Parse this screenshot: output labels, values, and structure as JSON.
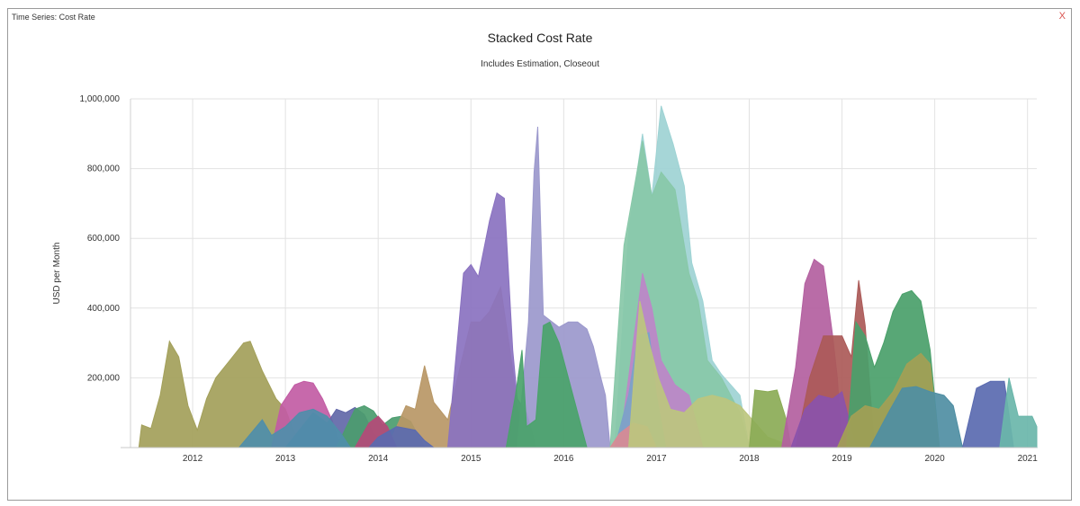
{
  "window": {
    "title": "Time Series: Cost Rate",
    "close_label": "X"
  },
  "chart_data": {
    "type": "area",
    "title": "Stacked Cost Rate",
    "subtitle": "Includes Estimation, Closeout",
    "ylabel": "USD per Month",
    "xlabel": "",
    "ylim": [
      0,
      1000000
    ],
    "yticks": [
      200000,
      400000,
      600000,
      800000,
      1000000
    ],
    "ytick_labels": [
      "200,000",
      "400,000",
      "600,000",
      "800,000",
      "1,000,000"
    ],
    "xlim": [
      2011.33,
      2021.1
    ],
    "xticks": [
      2012,
      2013,
      2014,
      2015,
      2016,
      2017,
      2018,
      2019,
      2020,
      2021
    ],
    "xtick_labels": [
      "2012",
      "2013",
      "2014",
      "2015",
      "2016",
      "2017",
      "2018",
      "2019",
      "2020",
      "2021"
    ],
    "grid": true,
    "legend": "none",
    "series": [
      {
        "color": "#a3a05a",
        "points": [
          [
            2011.42,
            0
          ],
          [
            2011.45,
            65000
          ],
          [
            2011.55,
            55000
          ],
          [
            2011.65,
            150000
          ],
          [
            2011.75,
            305000
          ],
          [
            2011.85,
            260000
          ],
          [
            2011.95,
            120000
          ],
          [
            2012.05,
            50000
          ],
          [
            2012.15,
            140000
          ],
          [
            2012.25,
            200000
          ],
          [
            2012.4,
            250000
          ],
          [
            2012.55,
            300000
          ],
          [
            2012.62,
            305000
          ],
          [
            2012.75,
            220000
          ],
          [
            2012.9,
            140000
          ],
          [
            2013.0,
            110000
          ],
          [
            2013.1,
            40000
          ],
          [
            2013.2,
            0
          ]
        ]
      },
      {
        "color": "#c25ca4",
        "points": [
          [
            2012.85,
            0
          ],
          [
            2012.95,
            120000
          ],
          [
            2013.1,
            180000
          ],
          [
            2013.2,
            190000
          ],
          [
            2013.3,
            185000
          ],
          [
            2013.4,
            140000
          ],
          [
            2013.5,
            80000
          ],
          [
            2013.6,
            0
          ]
        ]
      },
      {
        "color": "#6268a8",
        "points": [
          [
            2013.0,
            0
          ],
          [
            2013.3,
            100000
          ],
          [
            2013.45,
            70000
          ],
          [
            2013.55,
            110000
          ],
          [
            2013.65,
            100000
          ],
          [
            2013.75,
            115000
          ],
          [
            2013.85,
            95000
          ],
          [
            2013.95,
            40000
          ],
          [
            2014.1,
            0
          ]
        ]
      },
      {
        "color": "#4b9c6e",
        "points": [
          [
            2013.55,
            0
          ],
          [
            2013.75,
            110000
          ],
          [
            2013.85,
            120000
          ],
          [
            2013.95,
            105000
          ],
          [
            2014.05,
            65000
          ],
          [
            2014.15,
            85000
          ],
          [
            2014.25,
            90000
          ],
          [
            2014.35,
            75000
          ],
          [
            2014.5,
            0
          ]
        ]
      },
      {
        "color": "#b89766",
        "points": [
          [
            2014.1,
            0
          ],
          [
            2014.3,
            120000
          ],
          [
            2014.4,
            110000
          ],
          [
            2014.5,
            235000
          ],
          [
            2014.6,
            130000
          ],
          [
            2014.75,
            80000
          ],
          [
            2014.9,
            250000
          ],
          [
            2015.0,
            360000
          ],
          [
            2015.1,
            360000
          ],
          [
            2015.2,
            390000
          ],
          [
            2015.32,
            460000
          ],
          [
            2015.42,
            280000
          ],
          [
            2015.5,
            120000
          ],
          [
            2015.6,
            0
          ]
        ]
      },
      {
        "color": "#8a72c0",
        "points": [
          [
            2014.75,
            0
          ],
          [
            2014.92,
            500000
          ],
          [
            2015.0,
            525000
          ],
          [
            2015.08,
            490000
          ],
          [
            2015.2,
            650000
          ],
          [
            2015.28,
            730000
          ],
          [
            2015.36,
            715000
          ],
          [
            2015.45,
            280000
          ],
          [
            2015.5,
            140000
          ],
          [
            2015.6,
            100000
          ],
          [
            2015.7,
            0
          ]
        ]
      },
      {
        "color": "#9b98cc",
        "points": [
          [
            2015.5,
            0
          ],
          [
            2015.62,
            360000
          ],
          [
            2015.68,
            790000
          ],
          [
            2015.72,
            920000
          ],
          [
            2015.78,
            380000
          ],
          [
            2015.95,
            345000
          ],
          [
            2016.05,
            360000
          ],
          [
            2016.15,
            360000
          ],
          [
            2016.25,
            340000
          ],
          [
            2016.32,
            290000
          ],
          [
            2016.4,
            200000
          ],
          [
            2016.45,
            150000
          ],
          [
            2016.5,
            0
          ]
        ]
      },
      {
        "color": "#4aa36a",
        "points": [
          [
            2015.38,
            0
          ],
          [
            2015.48,
            150000
          ],
          [
            2015.55,
            280000
          ],
          [
            2015.6,
            60000
          ],
          [
            2015.7,
            80000
          ],
          [
            2015.78,
            350000
          ],
          [
            2015.85,
            360000
          ],
          [
            2015.95,
            300000
          ],
          [
            2016.05,
            200000
          ],
          [
            2016.15,
            100000
          ],
          [
            2016.25,
            0
          ]
        ]
      },
      {
        "color": "#9ed3d4",
        "points": [
          [
            2016.55,
            0
          ],
          [
            2016.7,
            620000
          ],
          [
            2016.85,
            900000
          ],
          [
            2016.95,
            720000
          ],
          [
            2017.05,
            980000
          ],
          [
            2017.18,
            870000
          ],
          [
            2017.3,
            750000
          ],
          [
            2017.38,
            530000
          ],
          [
            2017.5,
            420000
          ],
          [
            2017.6,
            250000
          ],
          [
            2017.7,
            210000
          ],
          [
            2017.9,
            150000
          ],
          [
            2018.0,
            0
          ]
        ]
      },
      {
        "color": "#88c8a8",
        "points": [
          [
            2016.5,
            0
          ],
          [
            2016.65,
            580000
          ],
          [
            2016.85,
            880000
          ],
          [
            2016.95,
            720000
          ],
          [
            2017.05,
            790000
          ],
          [
            2017.2,
            740000
          ],
          [
            2017.35,
            500000
          ],
          [
            2017.45,
            420000
          ],
          [
            2017.55,
            250000
          ],
          [
            2017.7,
            200000
          ],
          [
            2017.9,
            100000
          ],
          [
            2018.0,
            0
          ]
        ]
      },
      {
        "color": "#bd86c8",
        "points": [
          [
            2016.6,
            0
          ],
          [
            2016.75,
            300000
          ],
          [
            2016.85,
            500000
          ],
          [
            2016.95,
            400000
          ],
          [
            2017.05,
            250000
          ],
          [
            2017.2,
            180000
          ],
          [
            2017.35,
            150000
          ],
          [
            2017.5,
            0
          ]
        ]
      },
      {
        "color": "#7ba3c8",
        "points": [
          [
            2016.55,
            0
          ],
          [
            2016.7,
            150000
          ],
          [
            2016.8,
            320000
          ],
          [
            2016.92,
            330000
          ],
          [
            2017.0,
            150000
          ],
          [
            2017.1,
            0
          ]
        ]
      },
      {
        "color": "#d88a94",
        "points": [
          [
            2016.5,
            0
          ],
          [
            2016.6,
            40000
          ],
          [
            2016.75,
            70000
          ],
          [
            2016.9,
            60000
          ],
          [
            2017.0,
            0
          ]
        ]
      },
      {
        "color": "#bcc57e",
        "points": [
          [
            2016.7,
            0
          ],
          [
            2016.82,
            420000
          ],
          [
            2016.92,
            300000
          ],
          [
            2017.02,
            200000
          ],
          [
            2017.15,
            110000
          ],
          [
            2017.3,
            100000
          ],
          [
            2017.45,
            140000
          ],
          [
            2017.6,
            150000
          ],
          [
            2017.75,
            140000
          ],
          [
            2017.9,
            120000
          ],
          [
            2018.0,
            90000
          ],
          [
            2018.1,
            60000
          ],
          [
            2018.2,
            30000
          ],
          [
            2018.35,
            15000
          ],
          [
            2018.5,
            0
          ]
        ]
      },
      {
        "color": "#8bab56",
        "points": [
          [
            2018.0,
            0
          ],
          [
            2018.06,
            165000
          ],
          [
            2018.2,
            160000
          ],
          [
            2018.3,
            165000
          ],
          [
            2018.4,
            80000
          ],
          [
            2018.45,
            0
          ]
        ]
      },
      {
        "color": "#b360a0",
        "points": [
          [
            2018.35,
            0
          ],
          [
            2018.5,
            230000
          ],
          [
            2018.6,
            470000
          ],
          [
            2018.7,
            540000
          ],
          [
            2018.8,
            520000
          ],
          [
            2018.9,
            320000
          ],
          [
            2018.95,
            200000
          ],
          [
            2019.0,
            0
          ]
        ]
      },
      {
        "color": "#ab5a58",
        "points": [
          [
            2018.5,
            0
          ],
          [
            2018.65,
            200000
          ],
          [
            2018.8,
            320000
          ],
          [
            2019.0,
            320000
          ],
          [
            2019.1,
            260000
          ],
          [
            2019.18,
            480000
          ],
          [
            2019.25,
            350000
          ],
          [
            2019.35,
            0
          ]
        ]
      },
      {
        "color": "#8a52ab",
        "points": [
          [
            2018.45,
            0
          ],
          [
            2018.6,
            110000
          ],
          [
            2018.75,
            150000
          ],
          [
            2018.9,
            140000
          ],
          [
            2019.0,
            160000
          ],
          [
            2019.15,
            0
          ]
        ]
      },
      {
        "color": "#4aa06a",
        "points": [
          [
            2019.05,
            0
          ],
          [
            2019.15,
            360000
          ],
          [
            2019.25,
            320000
          ],
          [
            2019.35,
            230000
          ],
          [
            2019.45,
            300000
          ],
          [
            2019.55,
            390000
          ],
          [
            2019.65,
            440000
          ],
          [
            2019.75,
            450000
          ],
          [
            2019.85,
            420000
          ],
          [
            2019.95,
            280000
          ],
          [
            2020.05,
            0
          ]
        ]
      },
      {
        "color": "#a3a055",
        "points": [
          [
            2018.95,
            0
          ],
          [
            2019.1,
            90000
          ],
          [
            2019.25,
            120000
          ],
          [
            2019.4,
            110000
          ],
          [
            2019.55,
            160000
          ],
          [
            2019.7,
            240000
          ],
          [
            2019.85,
            270000
          ],
          [
            2019.95,
            240000
          ],
          [
            2020.05,
            0
          ]
        ]
      },
      {
        "color": "#4f8ea3",
        "points": [
          [
            2019.3,
            0
          ],
          [
            2019.5,
            100000
          ],
          [
            2019.65,
            170000
          ],
          [
            2019.8,
            175000
          ],
          [
            2019.95,
            160000
          ],
          [
            2020.1,
            150000
          ],
          [
            2020.2,
            120000
          ],
          [
            2020.3,
            0
          ]
        ]
      },
      {
        "color": "#5a6ab0",
        "points": [
          [
            2020.3,
            0
          ],
          [
            2020.45,
            170000
          ],
          [
            2020.6,
            190000
          ],
          [
            2020.75,
            190000
          ],
          [
            2020.85,
            0
          ]
        ]
      },
      {
        "color": "#6ab6aa",
        "points": [
          [
            2020.7,
            0
          ],
          [
            2020.8,
            200000
          ],
          [
            2020.9,
            90000
          ],
          [
            2021.05,
            90000
          ],
          [
            2021.1,
            60000
          ],
          [
            2021.1,
            0
          ]
        ]
      },
      {
        "color": "#4f8eaa",
        "points": [
          [
            2012.5,
            0
          ],
          [
            2012.75,
            80000
          ],
          [
            2012.85,
            35000
          ],
          [
            2013.0,
            60000
          ],
          [
            2013.15,
            100000
          ],
          [
            2013.3,
            110000
          ],
          [
            2013.45,
            90000
          ],
          [
            2013.6,
            40000
          ],
          [
            2013.7,
            0
          ]
        ]
      },
      {
        "color": "#b44a78",
        "points": [
          [
            2013.75,
            0
          ],
          [
            2013.9,
            70000
          ],
          [
            2014.0,
            90000
          ],
          [
            2014.1,
            60000
          ],
          [
            2014.2,
            0
          ]
        ]
      },
      {
        "color": "#5a6ab0",
        "points": [
          [
            2013.9,
            0
          ],
          [
            2014.0,
            30000
          ],
          [
            2014.2,
            60000
          ],
          [
            2014.4,
            50000
          ],
          [
            2014.5,
            20000
          ],
          [
            2014.6,
            0
          ]
        ]
      }
    ]
  }
}
